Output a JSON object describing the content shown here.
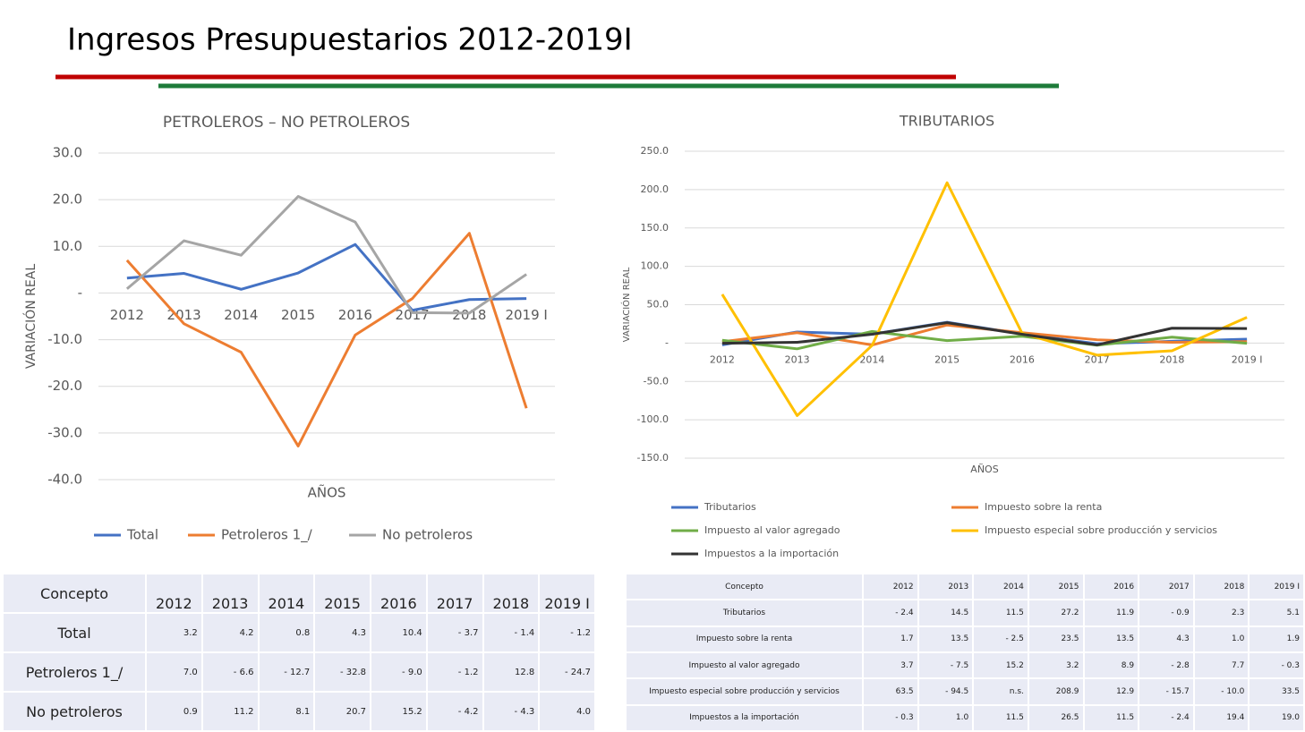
{
  "header": {
    "title": "Ingresos Presupuestarios 2012-2019I"
  },
  "chart_data": [
    {
      "type": "line",
      "title": "PETROLEROS – NO PETROLEROS",
      "x_label": "AÑOS",
      "y_label": "VARIACIÓN REAL",
      "categories": [
        "2012",
        "2013",
        "2014",
        "2015",
        "2016",
        "2017",
        "2018",
        "2019 I"
      ],
      "series": [
        {
          "name": "Total",
          "color": "#4472c4",
          "values": [
            3.2,
            4.2,
            0.8,
            4.3,
            10.4,
            -3.7,
            -1.4,
            -1.2
          ]
        },
        {
          "name": "Petroleros 1_/",
          "color": "#ed7d31",
          "values": [
            7.0,
            -6.6,
            -12.7,
            -32.8,
            -9.0,
            -1.2,
            12.8,
            -24.7
          ]
        },
        {
          "name": "No petroleros",
          "color": "#a5a5a5",
          "values": [
            0.9,
            11.2,
            8.1,
            20.7,
            15.2,
            -4.2,
            -4.3,
            4.0
          ]
        }
      ],
      "ylim": [
        -40,
        30
      ],
      "yticks": [
        {
          "value": 30,
          "label": "30.0"
        },
        {
          "value": 20,
          "label": "20.0"
        },
        {
          "value": 10,
          "label": "10.0"
        },
        {
          "value": 0,
          "label": "-"
        },
        {
          "value": -10,
          "label": "-10.0"
        },
        {
          "value": -20,
          "label": "-20.0"
        },
        {
          "value": -30,
          "label": "-30.0"
        },
        {
          "value": -40,
          "label": "-40.0"
        }
      ],
      "grid": true,
      "legend": "bottom"
    },
    {
      "type": "line",
      "title": "TRIBUTARIOS",
      "x_label": "AÑOS",
      "y_label": "VARIACIÓN REAL",
      "categories": [
        "2012",
        "2013",
        "2014",
        "2015",
        "2016",
        "2017",
        "2018",
        "2019 I"
      ],
      "series": [
        {
          "name": "Tributarios",
          "color": "#4472c4",
          "values": [
            -2.4,
            14.5,
            11.5,
            27.2,
            11.9,
            -0.9,
            2.3,
            5.1
          ]
        },
        {
          "name": "Impuesto sobre la renta",
          "color": "#ed7d31",
          "values": [
            1.7,
            13.5,
            -2.5,
            23.5,
            13.5,
            4.3,
            1.0,
            1.9
          ]
        },
        {
          "name": "Impuesto al valor agregado",
          "color": "#70ad47",
          "values": [
            3.7,
            -7.5,
            15.2,
            3.2,
            8.9,
            -2.8,
            7.7,
            -0.3
          ]
        },
        {
          "name": "Impuesto especial sobre producción y servicios",
          "color": "#ffc000",
          "values": [
            63.5,
            -94.5,
            -3,
            208.9,
            12.9,
            -15.7,
            -10.0,
            33.5
          ]
        },
        {
          "name": "Impuestos a la importación",
          "color": "#333333",
          "values": [
            -0.3,
            1.0,
            11.5,
            26.5,
            11.5,
            -2.4,
            19.4,
            19.0
          ]
        }
      ],
      "ylim": [
        -150,
        250
      ],
      "yticks": [
        {
          "value": 250,
          "label": "250.0"
        },
        {
          "value": 200,
          "label": "200.0"
        },
        {
          "value": 150,
          "label": "150.0"
        },
        {
          "value": 100,
          "label": "100.0"
        },
        {
          "value": 50,
          "label": "50.0"
        },
        {
          "value": 0,
          "label": "-"
        },
        {
          "value": -50,
          "label": "-50.0"
        },
        {
          "value": -100,
          "label": "-100.0"
        },
        {
          "value": -150,
          "label": "-150.0"
        }
      ],
      "grid": true,
      "legend": "bottom"
    }
  ],
  "tables": [
    {
      "header": [
        "Concepto",
        "2012",
        "2013",
        "2014",
        "2015",
        "2016",
        "2017",
        "2018",
        "2019 I"
      ],
      "rows": [
        [
          "Total",
          "3.2",
          "4.2",
          "0.8",
          "4.3",
          "10.4",
          "- 3.7",
          "- 1.4",
          "- 1.2"
        ],
        [
          "Petroleros 1_/",
          "7.0",
          "- 6.6",
          "- 12.7",
          "- 32.8",
          "- 9.0",
          "- 1.2",
          "12.8",
          "- 24.7"
        ],
        [
          "No petroleros",
          "0.9",
          "11.2",
          "8.1",
          "20.7",
          "15.2",
          "- 4.2",
          "- 4.3",
          "4.0"
        ]
      ]
    },
    {
      "header": [
        "Concepto",
        "2012",
        "2013",
        "2014",
        "2015",
        "2016",
        "2017",
        "2018",
        "2019 I"
      ],
      "rows": [
        [
          "Tributarios",
          "- 2.4",
          "14.5",
          "11.5",
          "27.2",
          "11.9",
          "- 0.9",
          "2.3",
          "5.1"
        ],
        [
          "Impuesto sobre la renta",
          "1.7",
          "13.5",
          "- 2.5",
          "23.5",
          "13.5",
          "4.3",
          "1.0",
          "1.9"
        ],
        [
          "Impuesto al valor agregado",
          "3.7",
          "- 7.5",
          "15.2",
          "3.2",
          "8.9",
          "- 2.8",
          "7.7",
          "- 0.3"
        ],
        [
          "Impuesto especial sobre producción y servicios",
          "63.5",
          "- 94.5",
          "n.s.",
          "208.9",
          "12.9",
          "- 15.7",
          "- 10.0",
          "33.5"
        ],
        [
          "Impuestos a la importación",
          "- 0.3",
          "1.0",
          "11.5",
          "26.5",
          "11.5",
          "- 2.4",
          "19.4",
          "19.0"
        ]
      ]
    }
  ]
}
